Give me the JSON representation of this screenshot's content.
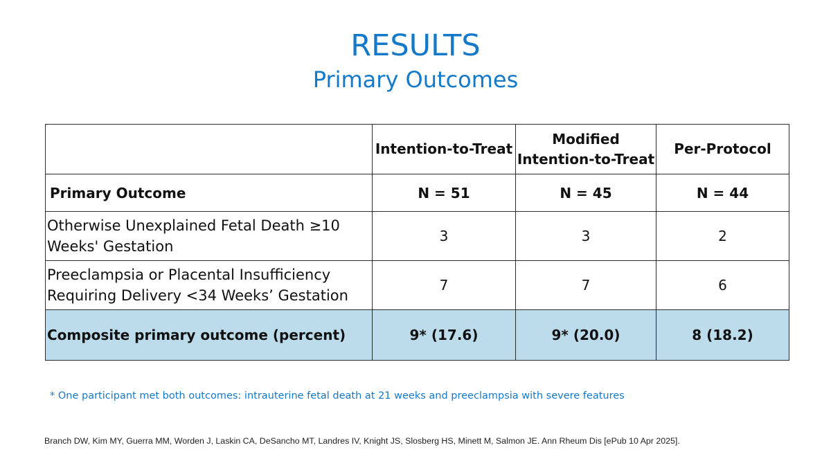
{
  "slide": {
    "title": "RESULTS",
    "subtitle": "Primary Outcomes",
    "accent_color": "#1479c9",
    "highlight_color": "#bcdcec"
  },
  "table": {
    "columns": [
      "",
      "Intention-to-Treat",
      "Modified Intention-to-Treat",
      "Per-Protocol"
    ],
    "n_row": {
      "label": "Primary Outcome",
      "values": [
        "N = 51",
        "N = 45",
        "N = 44"
      ]
    },
    "rows": [
      {
        "label": "Otherwise Unexplained Fetal Death ≥10 Weeks' Gestation",
        "values": [
          "3",
          "3",
          "2"
        ]
      },
      {
        "label": "Preeclampsia or Placental Insufficiency Requiring Delivery <34 Weeks’ Gestation",
        "values": [
          "7",
          "7",
          "6"
        ]
      }
    ],
    "composite": {
      "label": "Composite primary outcome (percent)",
      "values": [
        "9* (17.6)",
        "9* (20.0)",
        "8 (18.2)"
      ]
    }
  },
  "footnote": "* One participant met both outcomes: intrauterine fetal death at 21 weeks and preeclampsia with severe features",
  "citation": "Branch DW, Kim MY, Guerra MM, Worden J, Laskin CA, DeSancho MT, Landres IV, Knight JS, Slosberg HS, Minett M, Salmon JE. Ann Rheum Dis  [ePub 10 Apr 2025]."
}
